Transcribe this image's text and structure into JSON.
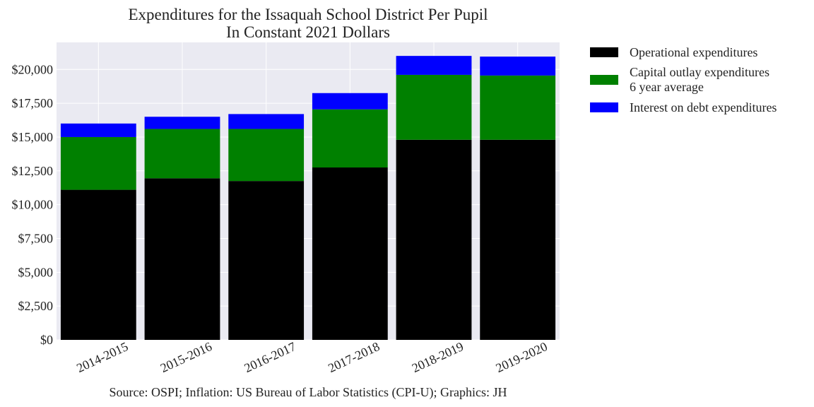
{
  "chart_data": {
    "type": "bar",
    "stacked": true,
    "title": "Expenditures for the Issaquah School District Per Pupil",
    "subtitle": "In Constant 2021 Dollars",
    "xlabel": "",
    "ylabel": "",
    "categories": [
      "2014-2015",
      "2015-2016",
      "2016-2017",
      "2017-2018",
      "2018-2019",
      "2019-2020"
    ],
    "series": [
      {
        "name": "Operational expenditures",
        "name_lines": [
          "Operational expenditures"
        ],
        "color": "#000000",
        "values": [
          11100,
          11950,
          11750,
          12750,
          14800,
          14800
        ]
      },
      {
        "name": "Capital outlay expenditures 6 year average",
        "name_lines": [
          "Capital outlay expenditures",
          "6 year average"
        ],
        "color": "#008000",
        "values": [
          3900,
          3650,
          3850,
          4300,
          4800,
          4750
        ]
      },
      {
        "name": "Interest on debt expenditures",
        "name_lines": [
          "Interest on debt expenditures"
        ],
        "color": "#0000ff",
        "values": [
          1000,
          900,
          1100,
          1200,
          1400,
          1400
        ]
      }
    ],
    "ylim": [
      0,
      22000
    ],
    "yticks": [
      0,
      2500,
      5000,
      7500,
      10000,
      12500,
      15000,
      17500,
      20000
    ],
    "ytick_labels": [
      "$0",
      "$2,500",
      "$5,000",
      "$7,500",
      "$10,000",
      "$12,500",
      "$15,000",
      "$17,500",
      "$20,000"
    ],
    "grid": true,
    "legend_position": "outside-upper-right",
    "source_note": "Source: OSPI; Inflation: US Bureau of Labor Statistics (CPI-U); Graphics: JH",
    "plot_background": "#eaeaf2"
  }
}
